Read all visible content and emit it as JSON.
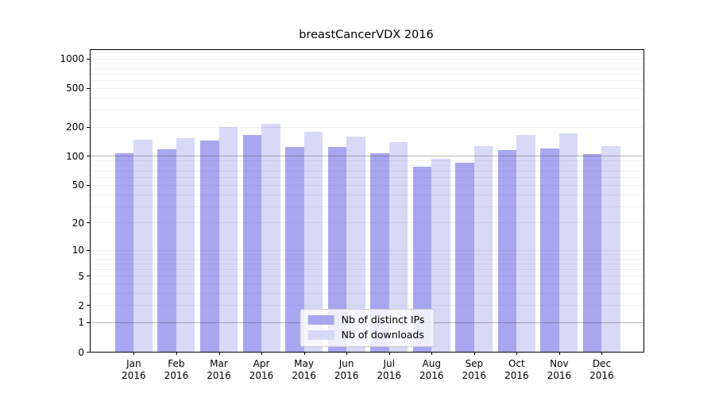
{
  "figure": {
    "title": "breastCancerVDX 2016",
    "background_color": "#ffffff"
  },
  "chart_data": {
    "type": "bar",
    "title": "breastCancerVDX 2016",
    "xlabel": "",
    "ylabel": "",
    "categories": [
      "Jan",
      "Feb",
      "Mar",
      "Apr",
      "May",
      "Jun",
      "Jul",
      "Aug",
      "Sep",
      "Oct",
      "Nov",
      "Dec"
    ],
    "year": "2016",
    "series": [
      {
        "name": "Nb of distinct IPs",
        "color": "#a7a7f0",
        "values": [
          106,
          118,
          144,
          163,
          124,
          124,
          106,
          78,
          85,
          116,
          119,
          104
        ]
      },
      {
        "name": "Nb of downloads",
        "color": "#d8d8f7",
        "values": [
          148,
          154,
          197,
          213,
          178,
          157,
          140,
          93,
          126,
          165,
          171,
          127
        ]
      }
    ],
    "y_axis": {
      "scale": "log1p",
      "ticks": [
        0,
        1,
        2,
        5,
        10,
        20,
        50,
        100,
        200,
        500,
        1000
      ],
      "limit": [
        0,
        1225
      ],
      "emphasized_gridlines": [
        1,
        100
      ]
    },
    "grid": "horizontal",
    "legend_position": "lower center"
  }
}
